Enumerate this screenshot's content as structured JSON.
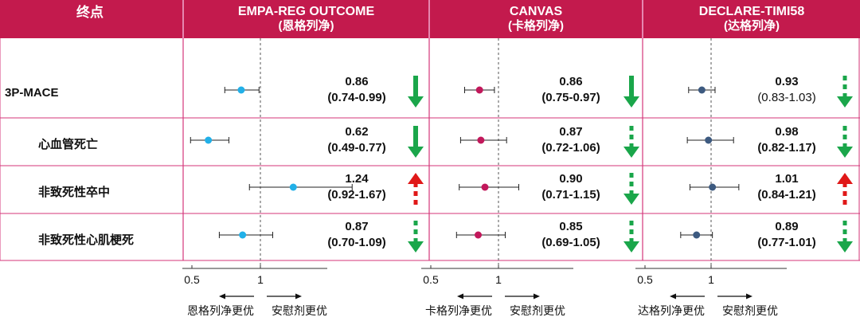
{
  "header": {
    "endpoint_label": "终点",
    "trials": [
      {
        "name": "EMPA-REG OUTCOME",
        "drug": "(恩格列净)"
      },
      {
        "name": "CANVAS",
        "drug": "(卡格列净)"
      },
      {
        "name": "DECLARE-TIMI58",
        "drug": "(达格列净)"
      }
    ]
  },
  "rows": [
    "3P-MACE",
    "心血管死亡",
    "非致死性卒中",
    "非致死性心肌梗死"
  ],
  "axis": {
    "ticks": [
      "0.5",
      "1"
    ]
  },
  "legends": [
    {
      "left": "恩格列净更优",
      "right": "安慰剂更优"
    },
    {
      "left": "卡格列净更优",
      "right": "安慰剂更优"
    },
    {
      "left": "达格列净更优",
      "right": "安慰剂更优"
    }
  ],
  "colors": {
    "header_bg": "#c31a4d",
    "empa_marker": "#22b0e8",
    "canvas_marker": "#c2185b",
    "declare_marker": "#3d5a80",
    "down_arrow": "#1aa64a",
    "up_arrow": "#e01818",
    "grid_border": "#d4367a"
  },
  "chart_data": [
    {
      "type": "scatter",
      "title": "EMPA-REG OUTCOME",
      "subtitle": "(恩格列净)",
      "x_reference": 1,
      "xlim": [
        0.5,
        1.5
      ],
      "points": [
        {
          "label": "3P-MACE",
          "hr": 0.86,
          "lo": 0.74,
          "hi": 0.99,
          "hr_text": "0.86",
          "ci_text": "(0.74-0.99)",
          "direction": "down",
          "significant": true
        },
        {
          "label": "心血管死亡",
          "hr": 0.62,
          "lo": 0.49,
          "hi": 0.77,
          "hr_text": "0.62",
          "ci_text": "(0.49-0.77)",
          "direction": "down",
          "significant": true
        },
        {
          "label": "非致死性卒中",
          "hr": 1.24,
          "lo": 0.92,
          "hi": 1.67,
          "hr_text": "1.24",
          "ci_text": "(0.92-1.67)",
          "direction": "up",
          "significant": false
        },
        {
          "label": "非致死性心肌梗死",
          "hr": 0.87,
          "lo": 0.7,
          "hi": 1.09,
          "hr_text": "0.87",
          "ci_text": "(0.70-1.09)",
          "direction": "down",
          "significant": false
        }
      ]
    },
    {
      "type": "scatter",
      "title": "CANVAS",
      "subtitle": "(卡格列净)",
      "x_reference": 1,
      "xlim": [
        0.5,
        1.5
      ],
      "points": [
        {
          "label": "3P-MACE",
          "hr": 0.86,
          "lo": 0.75,
          "hi": 0.97,
          "hr_text": "0.86",
          "ci_text": "(0.75-0.97)",
          "direction": "down",
          "significant": true
        },
        {
          "label": "心血管死亡",
          "hr": 0.87,
          "lo": 0.72,
          "hi": 1.06,
          "hr_text": "0.87",
          "ci_text": "(0.72-1.06)",
          "direction": "down",
          "significant": false
        },
        {
          "label": "非致死性卒中",
          "hr": 0.9,
          "lo": 0.71,
          "hi": 1.15,
          "hr_text": "0.90",
          "ci_text": "(0.71-1.15)",
          "direction": "down",
          "significant": false
        },
        {
          "label": "非致死性心肌梗死",
          "hr": 0.85,
          "lo": 0.69,
          "hi": 1.05,
          "hr_text": "0.85",
          "ci_text": "(0.69-1.05)",
          "direction": "down",
          "significant": false
        }
      ]
    },
    {
      "type": "scatter",
      "title": "DECLARE-TIMI58",
      "subtitle": "(达格列净)",
      "x_reference": 1,
      "xlim": [
        0.5,
        1.5
      ],
      "points": [
        {
          "label": "3P-MACE",
          "hr": 0.93,
          "lo": 0.83,
          "hi": 1.03,
          "hr_text": "0.93",
          "ci_text": "(0.83-1.03)",
          "direction": "down",
          "significant": false
        },
        {
          "label": "心血管死亡",
          "hr": 0.98,
          "lo": 0.82,
          "hi": 1.17,
          "hr_text": "0.98",
          "ci_text": "(0.82-1.17)",
          "direction": "down",
          "significant": false
        },
        {
          "label": "非致死性卒中",
          "hr": 1.01,
          "lo": 0.84,
          "hi": 1.21,
          "hr_text": "1.01",
          "ci_text": "(0.84-1.21)",
          "direction": "up",
          "significant": false
        },
        {
          "label": "非致死性心肌梗死",
          "hr": 0.89,
          "lo": 0.77,
          "hi": 1.01,
          "hr_text": "0.89",
          "ci_text": "(0.77-1.01)",
          "direction": "down",
          "significant": false
        }
      ]
    }
  ]
}
